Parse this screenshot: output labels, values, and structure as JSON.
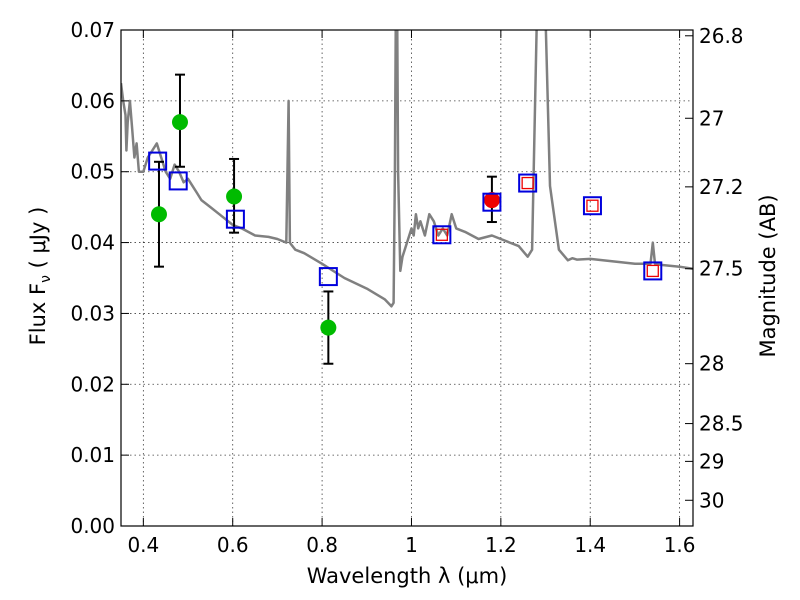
{
  "chart_data": {
    "type": "scatter",
    "xlabel": "Wavelength  λ (μm)",
    "ylabel": "Flux  F",
    "ylabel_sub": "ν",
    "ylabel_unit": " ( μJy )",
    "y2label": "Magnitude (AB)",
    "xlim": [
      0.35,
      1.63
    ],
    "ylim": [
      0.0,
      0.07
    ],
    "grid": true,
    "x_ticks": [
      0.4,
      0.6,
      0.8,
      1.0,
      1.2,
      1.4,
      1.6
    ],
    "x_tick_labels": [
      "0.4",
      "0.6",
      "0.8",
      "1",
      "1.2",
      "1.4",
      "1.6"
    ],
    "y_ticks": [
      0.0,
      0.01,
      0.02,
      0.03,
      0.04,
      0.05,
      0.06,
      0.07
    ],
    "y_tick_labels": [
      "0.00",
      "0.01",
      "0.02",
      "0.03",
      "0.04",
      "0.05",
      "0.06",
      "0.07"
    ],
    "y2_ticks": [
      26.8,
      27,
      27.2,
      27.5,
      28,
      28.5,
      29,
      30
    ],
    "y2_tick_labels": [
      "26.8",
      "27",
      "27.2",
      "27.5",
      "28",
      "28.5",
      "29",
      "30"
    ],
    "model_spectrum": {
      "color": "#808080",
      "x": [
        0.35,
        0.355,
        0.36,
        0.362,
        0.365,
        0.37,
        0.375,
        0.38,
        0.385,
        0.39,
        0.4,
        0.41,
        0.42,
        0.43,
        0.44,
        0.45,
        0.46,
        0.47,
        0.48,
        0.49,
        0.5,
        0.51,
        0.52,
        0.53,
        0.55,
        0.57,
        0.6,
        0.62,
        0.65,
        0.68,
        0.7,
        0.72,
        0.725,
        0.728,
        0.73,
        0.74,
        0.76,
        0.8,
        0.85,
        0.9,
        0.94,
        0.955,
        0.96,
        0.963,
        0.965,
        0.968,
        0.97,
        0.975,
        0.98,
        0.99,
        1.0,
        1.005,
        1.01,
        1.015,
        1.02,
        1.03,
        1.04,
        1.05,
        1.06,
        1.07,
        1.08,
        1.09,
        1.1,
        1.12,
        1.15,
        1.18,
        1.2,
        1.22,
        1.24,
        1.26,
        1.27,
        1.275,
        1.28,
        1.29,
        1.3,
        1.31,
        1.33,
        1.35,
        1.36,
        1.37,
        1.4,
        1.5,
        1.535,
        1.54,
        1.545,
        1.55,
        1.6,
        1.63
      ],
      "y": [
        0.0625,
        0.06,
        0.058,
        0.053,
        0.057,
        0.06,
        0.056,
        0.052,
        0.054,
        0.05,
        0.05,
        0.052,
        0.053,
        0.054,
        0.052,
        0.05,
        0.049,
        0.051,
        0.05,
        0.0485,
        0.049,
        0.048,
        0.047,
        0.046,
        0.045,
        0.044,
        0.0425,
        0.042,
        0.041,
        0.0408,
        0.0405,
        0.04,
        0.06,
        0.04,
        0.0398,
        0.039,
        0.0385,
        0.037,
        0.035,
        0.0335,
        0.032,
        0.031,
        0.0315,
        0.05,
        0.072,
        0.072,
        0.05,
        0.036,
        0.038,
        0.04,
        0.042,
        0.041,
        0.044,
        0.042,
        0.043,
        0.041,
        0.044,
        0.043,
        0.041,
        0.042,
        0.041,
        0.044,
        0.042,
        0.0415,
        0.0405,
        0.041,
        0.0405,
        0.04,
        0.0395,
        0.038,
        0.039,
        0.055,
        0.07,
        0.072,
        0.072,
        0.048,
        0.039,
        0.0375,
        0.0378,
        0.0376,
        0.0377,
        0.037,
        0.037,
        0.04,
        0.037,
        0.0369,
        0.0366,
        0.0363
      ]
    },
    "series": [
      {
        "marker": "filled-circle",
        "color": "#00bb00",
        "x": [
          0.435,
          0.482,
          0.603,
          0.814
        ],
        "y": [
          0.044,
          0.057,
          0.0465,
          0.028
        ],
        "yerr_low": [
          0.0074,
          0.0063,
          0.0051,
          0.0051
        ],
        "yerr_high": [
          0.0074,
          0.0067,
          0.0053,
          0.0051
        ]
      },
      {
        "marker": "filled-circle",
        "color": "#ee0000",
        "x": [
          1.18
        ],
        "y": [
          0.046
        ],
        "yerr_low": [
          0.0031
        ],
        "yerr_high": [
          0.0033
        ]
      },
      {
        "marker": "open-square",
        "color": "#0000dd",
        "x": [
          0.432,
          0.478,
          0.606,
          0.814,
          1.068,
          1.18,
          1.26,
          1.405,
          1.54
        ],
        "y": [
          0.0515,
          0.0487,
          0.0433,
          0.0352,
          0.0411,
          0.0457,
          0.0484,
          0.0452,
          0.036
        ]
      },
      {
        "marker": "open-square-small",
        "color": "#ee0000",
        "x": [
          1.068,
          1.26,
          1.405,
          1.54
        ],
        "y": [
          0.0411,
          0.0484,
          0.0452,
          0.036
        ]
      }
    ]
  }
}
